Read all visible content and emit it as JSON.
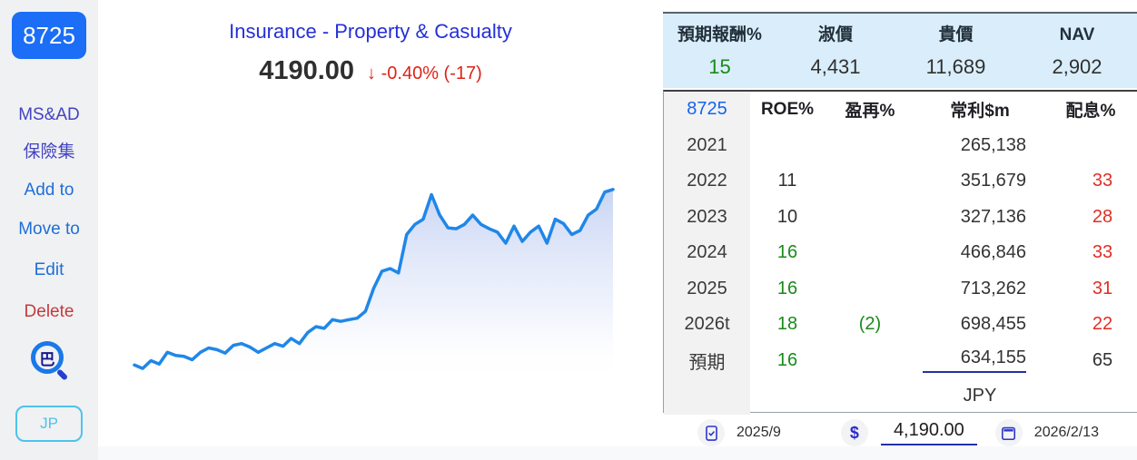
{
  "colors": {
    "green": "#1a8a1a",
    "red": "#e02e24",
    "dark": "#303030",
    "blue": "#1565e8"
  },
  "sidebar": {
    "ticker": "8725",
    "company_line1": "MS&AD",
    "company_line2": "保險集",
    "actions": [
      {
        "label": "Add to"
      },
      {
        "label": "Move to"
      },
      {
        "label": "Edit"
      },
      {
        "label": "Delete"
      }
    ],
    "logo_char": "巴",
    "market_button": "JP"
  },
  "header": {
    "title": "Insurance - Property & Casualty",
    "price": "4190.00",
    "change_arrow": "↓",
    "change_text": "-0.40% (-17)"
  },
  "summary": {
    "headers": [
      "預期報酬%",
      "淑價",
      "貴價",
      "NAV"
    ],
    "values": [
      "15",
      "4,431",
      "11,689",
      "2,902"
    ],
    "value_colors": [
      "green",
      "dark",
      "dark",
      "dark"
    ]
  },
  "detail_table": {
    "headers": [
      "8725",
      "ROE%",
      "盈再%",
      "常利$m",
      "配息%"
    ],
    "rows": [
      {
        "year": "2021",
        "roe": "",
        "roe_color": "dark",
        "reinvest": "",
        "reinvest_color": "dark",
        "profit": "265,138",
        "payout": "",
        "payout_color": "dark"
      },
      {
        "year": "2022",
        "roe": "11",
        "roe_color": "dark",
        "reinvest": "",
        "reinvest_color": "dark",
        "profit": "351,679",
        "payout": "33",
        "payout_color": "red"
      },
      {
        "year": "2023",
        "roe": "10",
        "roe_color": "dark",
        "reinvest": "",
        "reinvest_color": "dark",
        "profit": "327,136",
        "payout": "28",
        "payout_color": "red"
      },
      {
        "year": "2024",
        "roe": "16",
        "roe_color": "green",
        "reinvest": "",
        "reinvest_color": "dark",
        "profit": "466,846",
        "payout": "33",
        "payout_color": "red"
      },
      {
        "year": "2025",
        "roe": "16",
        "roe_color": "green",
        "reinvest": "",
        "reinvest_color": "dark",
        "profit": "713,262",
        "payout": "31",
        "payout_color": "red"
      },
      {
        "year": "2026t",
        "roe": "18",
        "roe_color": "green",
        "reinvest": "(2)",
        "reinvest_color": "green",
        "profit": "698,455",
        "payout": "22",
        "payout_color": "red"
      },
      {
        "year": "預期",
        "roe": "16",
        "roe_color": "green",
        "reinvest": "",
        "reinvest_color": "dark",
        "profit": "634,155",
        "payout": "65",
        "payout_color": "dark"
      }
    ],
    "currency": "JPY"
  },
  "footer": {
    "report_period": "2025/9",
    "currency_symbol": "$",
    "price_value": "4,190.00",
    "quote_date": "2026/2/13"
  },
  "chart_data": {
    "type": "area",
    "title": "",
    "series_name": "Share price (JPY)",
    "axes_hidden": true,
    "grid": false,
    "ylim": [
      950,
      4250
    ],
    "line_color": "#1f87e8",
    "values": [
      1150,
      1090,
      1225,
      1165,
      1370,
      1315,
      1300,
      1240,
      1370,
      1445,
      1415,
      1355,
      1490,
      1520,
      1460,
      1370,
      1445,
      1520,
      1475,
      1610,
      1520,
      1710,
      1815,
      1785,
      1935,
      1905,
      1935,
      1960,
      2080,
      2480,
      2775,
      2820,
      2745,
      3410,
      3585,
      3675,
      4100,
      3745,
      3525,
      3510,
      3585,
      3745,
      3585,
      3510,
      3450,
      3260,
      3555,
      3290,
      3450,
      3555,
      3260,
      3675,
      3600,
      3410,
      3480,
      3745,
      3850,
      4145,
      4190
    ]
  }
}
